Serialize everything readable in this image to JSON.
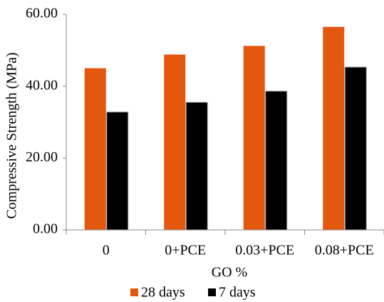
{
  "chart_data": {
    "type": "bar",
    "y_label": "Compressive Strength (MPa)",
    "x_label": "GO %",
    "categories": [
      "0",
      "0+PCE",
      "0.03+PCE",
      "0.08+PCE"
    ],
    "series": [
      {
        "name": "28 days",
        "color": "#e4570f",
        "values": [
          45,
          48.8,
          51.2,
          56.5
        ]
      },
      {
        "name": "7 days",
        "color": "#000000",
        "values": [
          32.8,
          35.5,
          38.6,
          45.3
        ]
      }
    ],
    "ylim": [
      0,
      60
    ],
    "yticks": [
      {
        "value": 0,
        "label": "0.00"
      },
      {
        "value": 20,
        "label": "20.00"
      },
      {
        "value": 40,
        "label": "40.00"
      },
      {
        "value": 60,
        "label": "60.00"
      }
    ],
    "grid": false,
    "legend": "bottom"
  }
}
